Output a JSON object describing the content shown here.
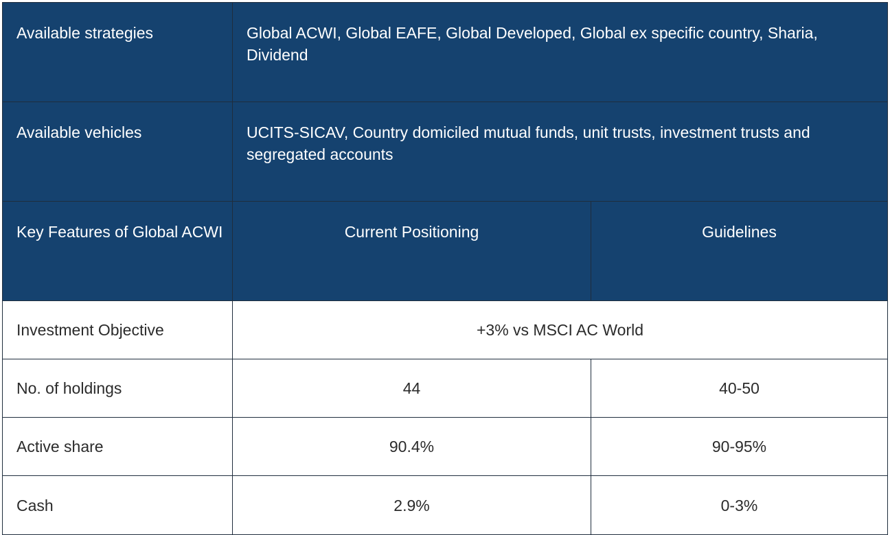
{
  "strategies": {
    "label": "Available strategies",
    "value": "Global ACWI, Global EAFE, Global Developed, Global ex specific country, Sharia, Dividend"
  },
  "vehicles": {
    "label": "Available vehicles",
    "value": "UCITS-SICAV, Country domiciled mutual funds, unit trusts, investment trusts and segregated accounts"
  },
  "header": {
    "features": "Key Features of Global ACWI",
    "current": "Current Positioning",
    "guidelines": "Guidelines"
  },
  "objective": {
    "label": "Investment Objective",
    "value": "+3% vs MSCI AC World"
  },
  "rows": [
    {
      "label": "No. of holdings",
      "current": "44",
      "guideline": "40-50"
    },
    {
      "label": "Active share",
      "current": "90.4%",
      "guideline": "90-95%"
    },
    {
      "label": "Cash",
      "current": "2.9%",
      "guideline": "0-3%"
    }
  ],
  "colors": {
    "header_bg": "#15426f",
    "header_text": "#ffffff",
    "border": "#1f2d3d"
  }
}
